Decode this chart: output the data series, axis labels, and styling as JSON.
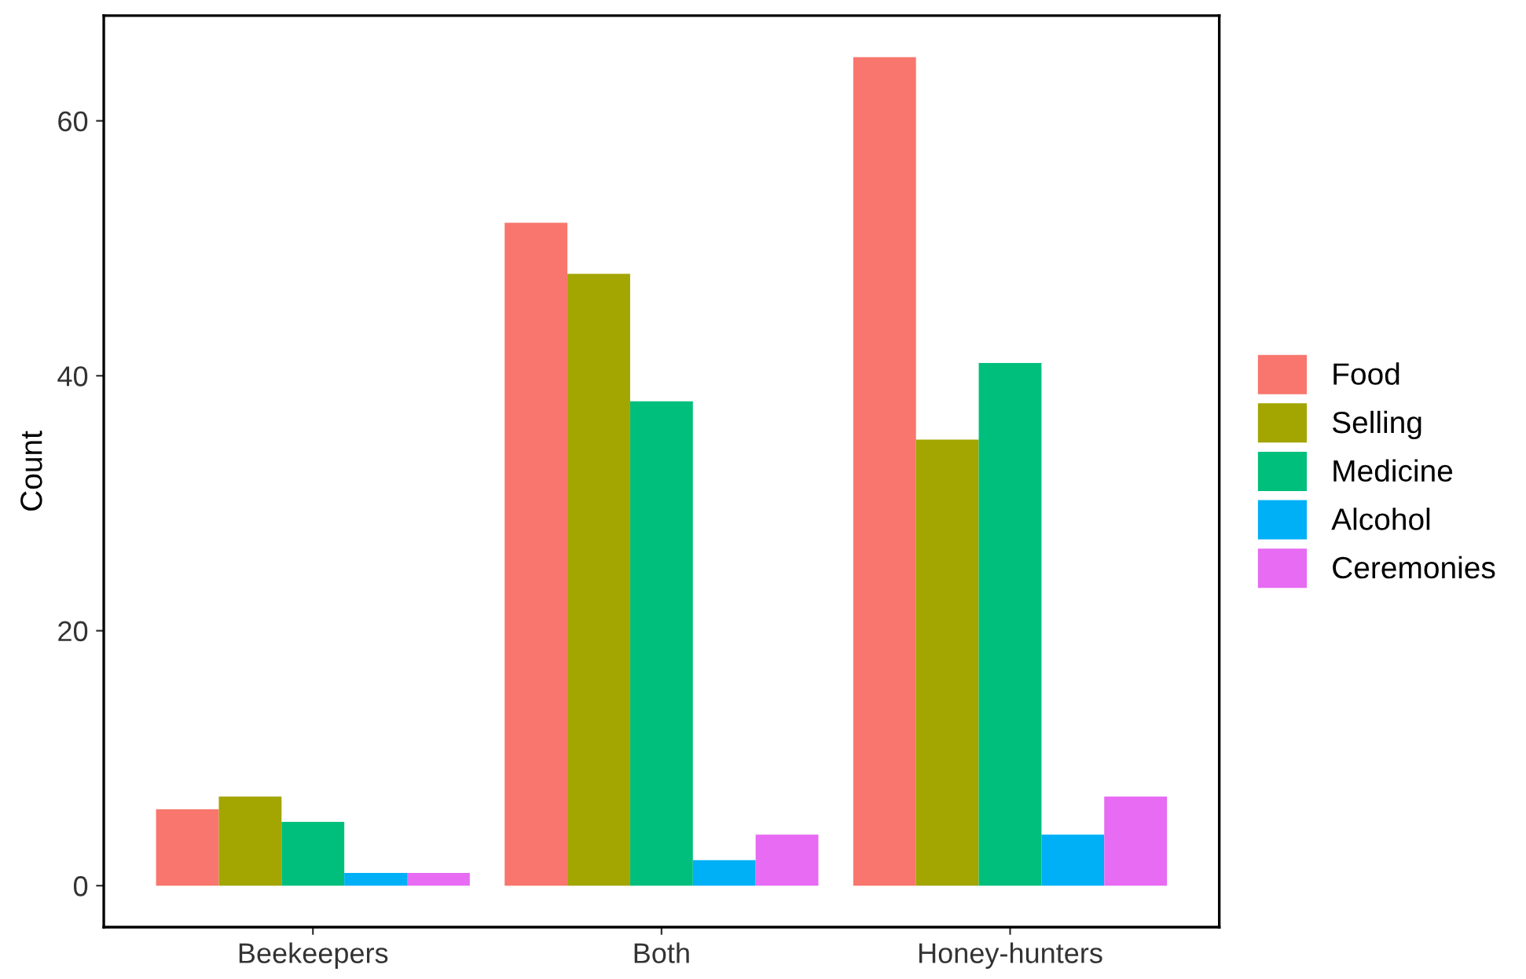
{
  "chart_data": {
    "type": "bar",
    "ylabel": "Count",
    "categories": [
      "Beekeepers",
      "Both",
      "Honey-hunters"
    ],
    "series": [
      {
        "name": "Food",
        "color": "#f8766d",
        "values": [
          6,
          52,
          65
        ]
      },
      {
        "name": "Selling",
        "color": "#a3a500",
        "values": [
          7,
          48,
          35
        ]
      },
      {
        "name": "Medicine",
        "color": "#00bf7d",
        "values": [
          5,
          38,
          41
        ]
      },
      {
        "name": "Alcohol",
        "color": "#00b0f6",
        "values": [
          1,
          2,
          4
        ]
      },
      {
        "name": "Ceremonies",
        "color": "#e76bf3",
        "values": [
          1,
          4,
          7
        ]
      }
    ],
    "ylim": [
      -3.25,
      68.25
    ],
    "yticks": [
      0,
      20,
      40,
      60
    ],
    "grid": false,
    "legend": "right"
  }
}
